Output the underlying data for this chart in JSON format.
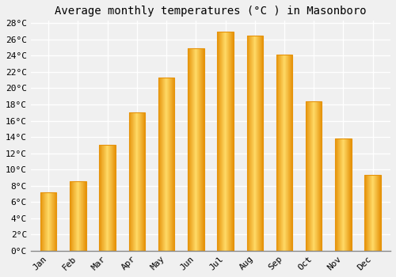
{
  "title": "Average monthly temperatures (°C ) in Masonboro",
  "months": [
    "Jan",
    "Feb",
    "Mar",
    "Apr",
    "May",
    "Jun",
    "Jul",
    "Aug",
    "Sep",
    "Oct",
    "Nov",
    "Dec"
  ],
  "values": [
    7.2,
    8.6,
    13.0,
    17.0,
    21.3,
    24.9,
    27.0,
    26.5,
    24.1,
    18.4,
    13.8,
    9.3
  ],
  "bar_color_center": "#FFD966",
  "bar_color_edge": "#E6930A",
  "ylim": [
    0,
    28
  ],
  "yticks": [
    0,
    2,
    4,
    6,
    8,
    10,
    12,
    14,
    16,
    18,
    20,
    22,
    24,
    26,
    28
  ],
  "background_color": "#f0f0f0",
  "grid_color": "#ffffff",
  "title_fontsize": 10,
  "tick_fontsize": 8,
  "bar_width": 0.55
}
